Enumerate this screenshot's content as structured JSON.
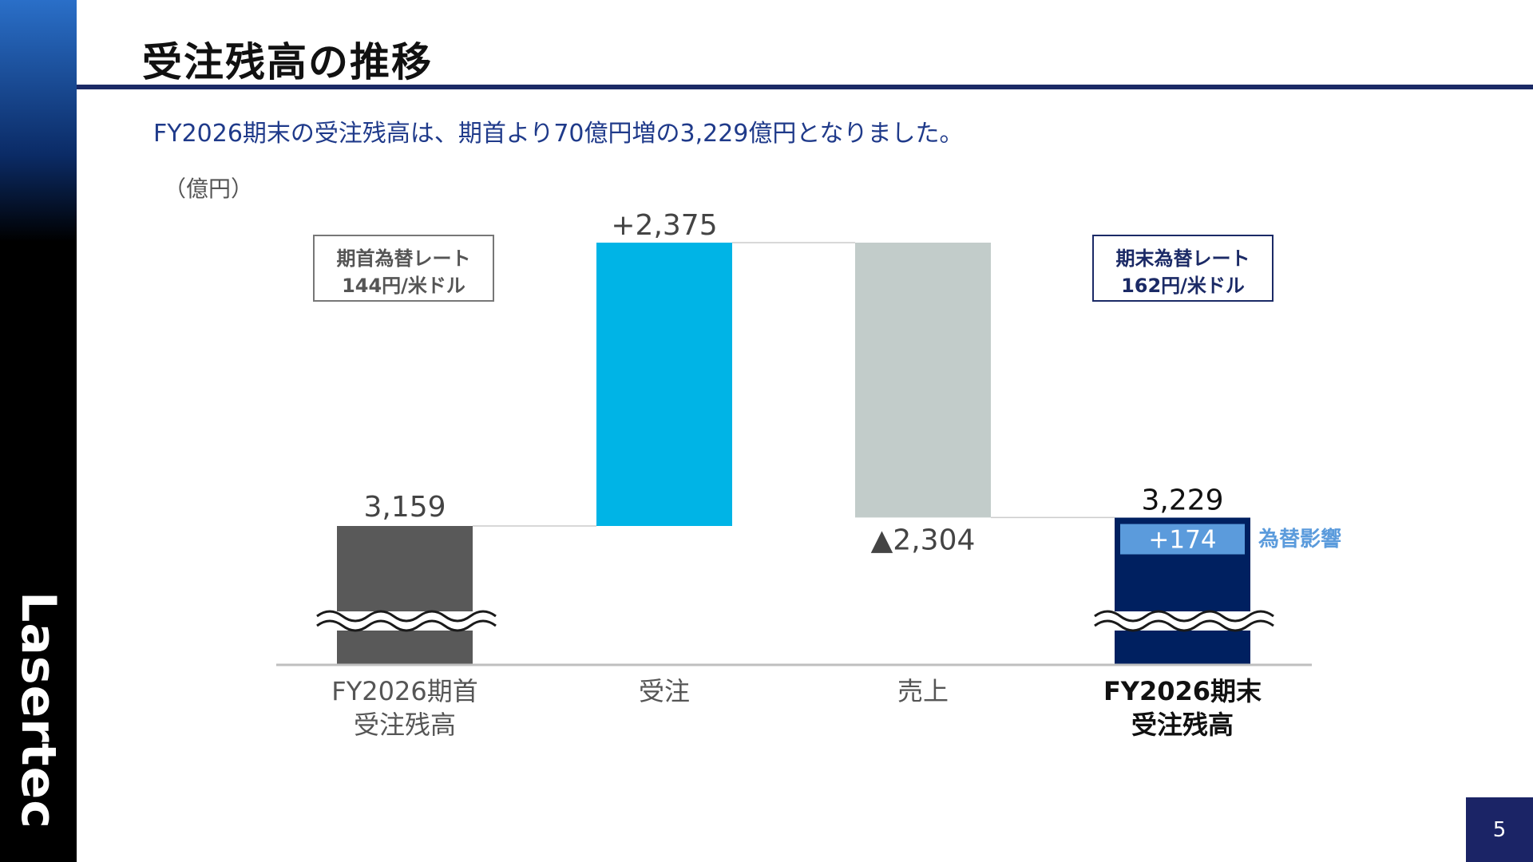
{
  "title": "受注残高の推移",
  "subtitle": "FY2026期末の受注残高は、期首より70億円増の3,229億円となりました。",
  "unit": "（億円）",
  "logo_text": "Lasertec",
  "page_number": "5",
  "note_start": {
    "line1": "期首為替レート",
    "line2": "144円/米ドル"
  },
  "note_end": {
    "line1": "期末為替レート",
    "line2": "162円/米ドル"
  },
  "fx_impact_label": "為替影響",
  "colors": {
    "opening": "#595959",
    "orders": "#00b4e6",
    "sales": "#c2ccca",
    "closing": "#002060",
    "fx_inner": "#5b9bdc",
    "rule": "#1b2a66",
    "subtitle": "#1f3a8a"
  },
  "chart_data": {
    "type": "bar",
    "subtype": "waterfall",
    "categories": [
      {
        "line1": "FY2026期首",
        "line2": "受注残高",
        "bold": false
      },
      {
        "line1": "受注",
        "line2": "",
        "bold": false
      },
      {
        "line1": "売上",
        "line2": "",
        "bold": false
      },
      {
        "line1": "FY2026期末",
        "line2": "受注残高",
        "bold": true
      }
    ],
    "values": [
      3159,
      2375,
      -2304,
      3229
    ],
    "value_labels": [
      "3,159",
      "+2,375",
      "▲2,304",
      "3,229"
    ],
    "kinds": [
      "total",
      "increase",
      "decrease",
      "total"
    ],
    "fx_impact": {
      "value": 174,
      "label": "+174"
    },
    "axis_break": true,
    "ylabel": "（億円）"
  }
}
